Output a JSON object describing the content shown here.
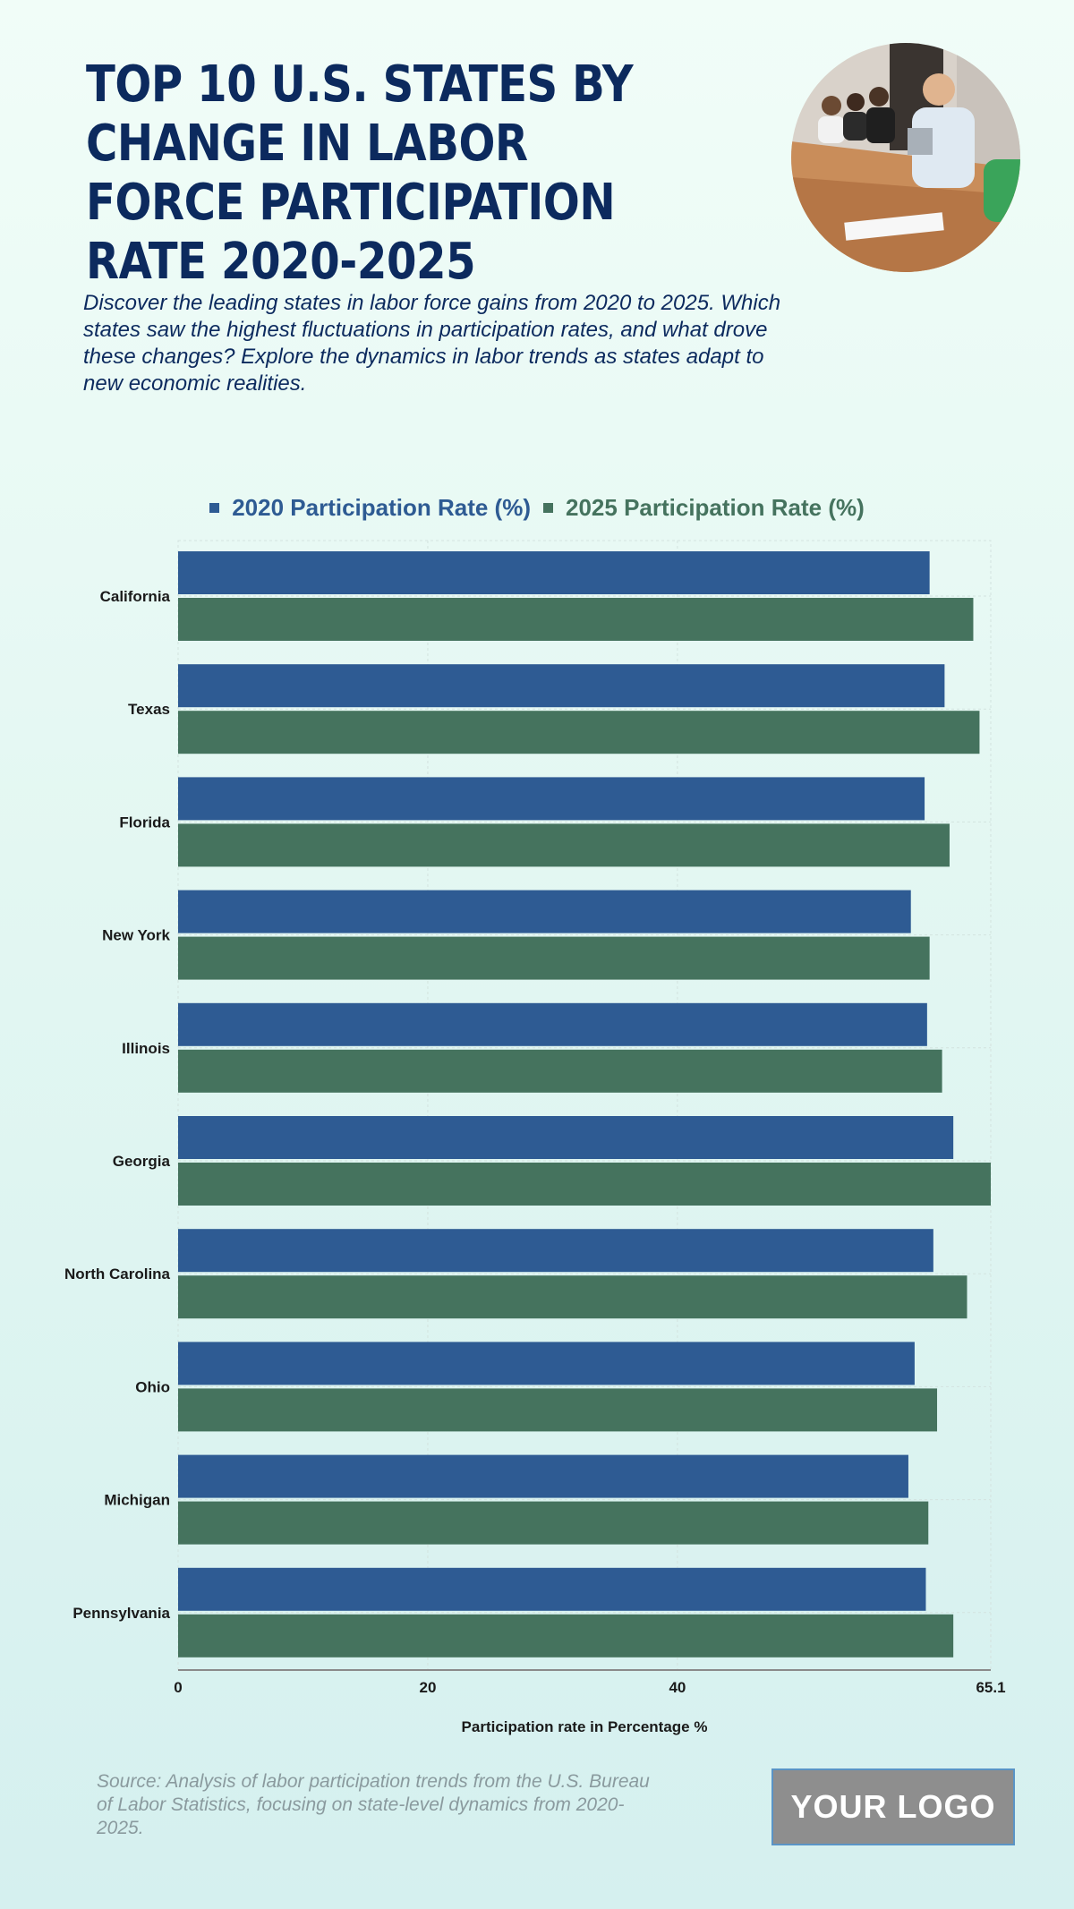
{
  "header": {
    "title": "TOP 10 U.S. STATES BY CHANGE IN LABOR FORCE PARTICIPATION RATE 2020-2025",
    "subtitle": "Discover the leading states in labor force gains from 2020 to 2025. Which states saw the highest fluctuations in participation rates, and what drove these changes? Explore the dynamics in labor trends as states adapt to new economic realities."
  },
  "colors": {
    "series_2020": "#2e5b93",
    "series_2025": "#45735e",
    "title": "#0c2a5e"
  },
  "chart_data": {
    "type": "bar",
    "orientation": "horizontal",
    "title": "",
    "categories": [
      "California",
      "Texas",
      "Florida",
      "New York",
      "Illinois",
      "Georgia",
      "North Carolina",
      "Ohio",
      "Michigan",
      "Pennsylvania"
    ],
    "series": [
      {
        "name": "2020 Participation Rate (%)",
        "values": [
          60.2,
          61.4,
          59.8,
          58.7,
          60.0,
          62.1,
          60.5,
          59.0,
          58.5,
          59.9
        ]
      },
      {
        "name": "2025 Participation Rate (%)",
        "values": [
          63.7,
          64.2,
          61.8,
          60.2,
          61.2,
          65.1,
          63.2,
          60.8,
          60.1,
          62.1
        ]
      }
    ],
    "xlabel": "Participation rate in Percentage %",
    "ylabel": "",
    "xlim": [
      0,
      65.1
    ],
    "xticks": [
      0,
      20,
      40,
      65.1
    ],
    "xtick_labels": [
      "0",
      "20",
      "40",
      "65.1"
    ],
    "grid": true,
    "legend_position": "top"
  },
  "footer": {
    "source": "Source: Analysis of labor participation trends from the U.S. Bureau of Labor Statistics, focusing on state-level dynamics from 2020-2025.",
    "logo_text": "YOUR LOGO"
  }
}
